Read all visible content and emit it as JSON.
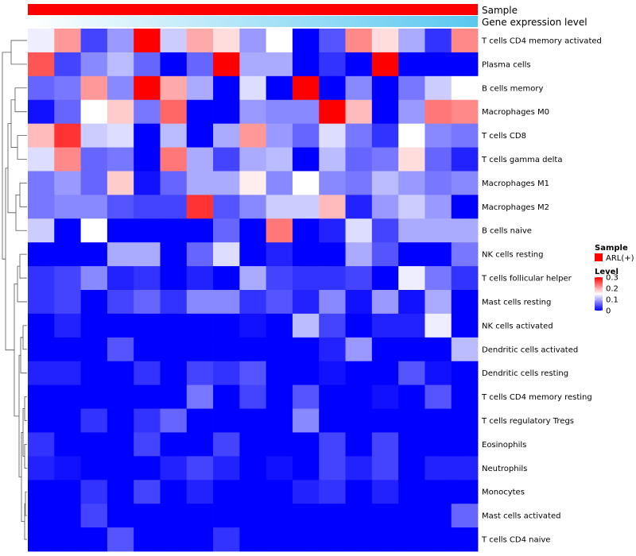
{
  "chart_data": {
    "type": "heatmap",
    "title": "",
    "annotation_tracks": [
      {
        "name": "Sample",
        "label": "Sample",
        "color": "#ff0000"
      },
      {
        "name": "Gene expression level",
        "label": "Gene expression level",
        "gradient": [
          "#ffffff",
          "#5ac8f0"
        ]
      }
    ],
    "rows": [
      "T cells CD4 memory activated",
      "Plasma cells",
      "B cells memory",
      "Macrophages M0",
      "T cells CD8",
      "T cells gamma delta",
      "Macrophages M1",
      "Macrophages M2",
      "B cells naive",
      "NK cells resting",
      "T cells follicular helper",
      "Mast cells resting",
      "NK cells activated",
      "Dendritic cells activated",
      "Dendritic cells resting",
      "T cells CD4 memory resting",
      "T cells regulatory  Tregs",
      "Eosinophils",
      "Neutrophils",
      "Monocytes",
      "Mast cells activated",
      "T cells CD4 naive"
    ],
    "n_columns": 17,
    "values": [
      [
        0.14,
        0.21,
        0.04,
        0.09,
        0.3,
        0.12,
        0.2,
        0.17,
        0.09,
        0.15,
        0.0,
        0.05,
        0.22,
        0.17,
        0.1,
        0.03,
        0.22
      ],
      [
        0.25,
        0.04,
        0.08,
        0.11,
        0.06,
        0.0,
        0.06,
        0.3,
        0.1,
        0.1,
        0.0,
        0.03,
        0.0,
        0.3,
        0.0,
        0.0,
        0.0
      ],
      [
        0.06,
        0.07,
        0.21,
        0.08,
        0.3,
        0.2,
        0.1,
        0.0,
        0.13,
        0.0,
        0.3,
        0.0,
        0.08,
        0.0,
        0.07,
        0.12,
        0.15
      ],
      [
        0.01,
        0.06,
        0.15,
        0.18,
        0.07,
        0.24,
        0.0,
        0.0,
        0.09,
        0.08,
        0.08,
        0.3,
        0.19,
        0.0,
        0.09,
        0.23,
        0.22
      ],
      [
        0.19,
        0.27,
        0.12,
        0.13,
        0.0,
        0.11,
        0.0,
        0.1,
        0.21,
        0.09,
        0.06,
        0.13,
        0.07,
        0.03,
        0.15,
        0.08,
        0.07
      ],
      [
        0.13,
        0.22,
        0.06,
        0.07,
        0.0,
        0.23,
        0.1,
        0.04,
        0.1,
        0.11,
        0.0,
        0.11,
        0.06,
        0.07,
        0.17,
        0.06,
        0.02
      ],
      [
        0.07,
        0.09,
        0.06,
        0.18,
        0.01,
        0.06,
        0.1,
        0.1,
        0.16,
        0.08,
        0.15,
        0.08,
        0.07,
        0.11,
        0.09,
        0.07,
        0.08
      ],
      [
        0.07,
        0.08,
        0.08,
        0.05,
        0.04,
        0.04,
        0.27,
        0.05,
        0.08,
        0.12,
        0.12,
        0.19,
        0.02,
        0.09,
        0.12,
        0.09,
        0.0
      ],
      [
        0.12,
        0.0,
        0.15,
        0.0,
        0.0,
        0.0,
        0.0,
        0.06,
        0.0,
        0.23,
        0.0,
        0.02,
        0.13,
        0.04,
        0.1,
        0.1,
        0.1
      ],
      [
        0.0,
        0.0,
        0.0,
        0.1,
        0.1,
        0.0,
        0.06,
        0.13,
        0.0,
        0.02,
        0.0,
        0.0,
        0.1,
        0.05,
        0.0,
        0.0,
        0.07
      ],
      [
        0.03,
        0.04,
        0.08,
        0.02,
        0.03,
        0.0,
        0.02,
        0.0,
        0.1,
        0.04,
        0.03,
        0.03,
        0.04,
        0.0,
        0.14,
        0.07,
        0.03
      ],
      [
        0.03,
        0.04,
        0.0,
        0.04,
        0.06,
        0.03,
        0.08,
        0.08,
        0.03,
        0.05,
        0.02,
        0.08,
        0.01,
        0.09,
        0.01,
        0.1,
        0.0
      ],
      [
        0.0,
        0.02,
        0.0,
        0.0,
        0.0,
        0.0,
        0.0,
        0.0,
        0.01,
        0.0,
        0.11,
        0.04,
        0.0,
        0.02,
        0.02,
        0.14,
        0.0
      ],
      [
        0.0,
        0.0,
        0.0,
        0.05,
        0.0,
        0.0,
        0.0,
        0.0,
        0.0,
        0.0,
        0.0,
        0.02,
        0.09,
        0.0,
        0.0,
        0.0,
        0.11
      ],
      [
        0.02,
        0.02,
        0.0,
        0.0,
        0.03,
        0.0,
        0.04,
        0.03,
        0.05,
        0.0,
        0.0,
        0.01,
        0.0,
        0.0,
        0.05,
        0.01,
        0.0
      ],
      [
        0.0,
        0.0,
        0.0,
        0.0,
        0.0,
        0.0,
        0.07,
        0.0,
        0.04,
        0.0,
        0.05,
        0.0,
        0.0,
        0.01,
        0.0,
        0.05,
        0.0
      ],
      [
        0.0,
        0.0,
        0.03,
        0.0,
        0.03,
        0.06,
        0.0,
        0.0,
        0.0,
        0.0,
        0.08,
        0.0,
        0.0,
        0.0,
        0.0,
        0.0,
        0.0
      ],
      [
        0.03,
        0.0,
        0.0,
        0.0,
        0.04,
        0.0,
        0.0,
        0.04,
        0.0,
        0.0,
        0.0,
        0.04,
        0.0,
        0.04,
        0.0,
        0.0,
        0.0
      ],
      [
        0.02,
        0.01,
        0.0,
        0.0,
        0.0,
        0.02,
        0.04,
        0.02,
        0.0,
        0.01,
        0.0,
        0.04,
        0.02,
        0.04,
        0.0,
        0.02,
        0.02
      ],
      [
        0.0,
        0.0,
        0.03,
        0.0,
        0.04,
        0.0,
        0.02,
        0.0,
        0.0,
        0.0,
        0.02,
        0.03,
        0.0,
        0.02,
        0.0,
        0.0,
        0.0
      ],
      [
        0.0,
        0.0,
        0.04,
        0.0,
        0.0,
        0.0,
        0.0,
        0.0,
        0.0,
        0.0,
        0.0,
        0.0,
        0.0,
        0.0,
        0.0,
        0.0,
        0.06
      ],
      [
        0.0,
        0.0,
        0.0,
        0.05,
        0.0,
        0.0,
        0.0,
        0.03,
        0.0,
        0.0,
        0.0,
        0.0,
        0.0,
        0.0,
        0.0,
        0.0,
        0.0
      ]
    ],
    "color_scale": {
      "min": 0,
      "max": 0.3,
      "low": "#0000ff",
      "mid": "#ffffff",
      "high": "#ff0000",
      "mid_value": 0.15
    },
    "legend": {
      "position": "right",
      "sample": {
        "title": "Sample",
        "entry": "ARL(+)",
        "color": "#ff0000"
      },
      "level": {
        "title": "Level",
        "ticks": [
          "0.3",
          "0.2",
          "0.1",
          "0"
        ],
        "tick_values": [
          0.3,
          0.2,
          0.1,
          0
        ]
      }
    },
    "row_dendrogram": true,
    "xlabel": "",
    "ylabel": ""
  }
}
